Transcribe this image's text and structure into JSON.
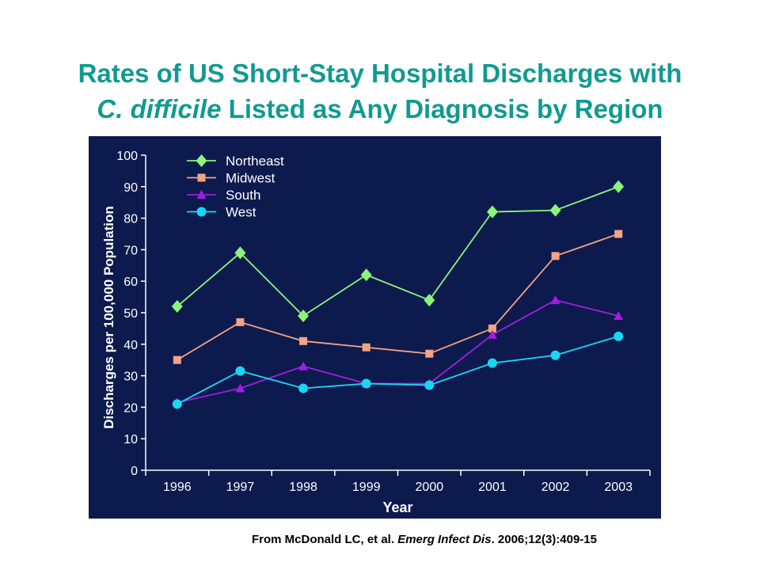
{
  "title": {
    "line1": "Rates of US Short-Stay Hospital Discharges with",
    "line2_italic": "C. difficile",
    "line2_rest": " Listed as Any Diagnosis by Region"
  },
  "citation": {
    "prefix": "From McDonald LC, et al. ",
    "journal": "Emerg Infect Dis",
    "suffix": ". 2006;12(3):409-15"
  },
  "colors": {
    "background_panel": "#0d1a4e",
    "title": "#119a91",
    "Northeast": "#8af57a",
    "Midwest": "#f4a383",
    "South": "#a11de2",
    "West": "#19d6f2"
  },
  "chart_data": {
    "type": "line",
    "xlabel": "Year",
    "ylabel": "Discharges per 100,000 Population",
    "categories": [
      "1996",
      "1997",
      "1998",
      "1999",
      "2000",
      "2001",
      "2002",
      "2003"
    ],
    "ylim": [
      0,
      100
    ],
    "yticks": [
      0,
      10,
      20,
      30,
      40,
      50,
      60,
      70,
      80,
      90,
      100
    ],
    "legend_position": "top-left",
    "grid": false,
    "series": [
      {
        "name": "Northeast",
        "marker": "diamond",
        "color": "#8af57a",
        "values": [
          52,
          69,
          49,
          62,
          54,
          82,
          82.5,
          90
        ]
      },
      {
        "name": "Midwest",
        "marker": "square",
        "color": "#f4a383",
        "values": [
          35,
          47,
          41,
          39,
          37,
          45,
          68,
          75
        ]
      },
      {
        "name": "South",
        "marker": "triangle",
        "color": "#a11de2",
        "values": [
          21.5,
          26,
          33,
          27.5,
          27.5,
          43,
          54,
          49
        ]
      },
      {
        "name": "West",
        "marker": "circle",
        "color": "#19d6f2",
        "values": [
          21,
          31.5,
          26,
          27.5,
          27,
          34,
          36.5,
          42.5
        ]
      }
    ]
  }
}
